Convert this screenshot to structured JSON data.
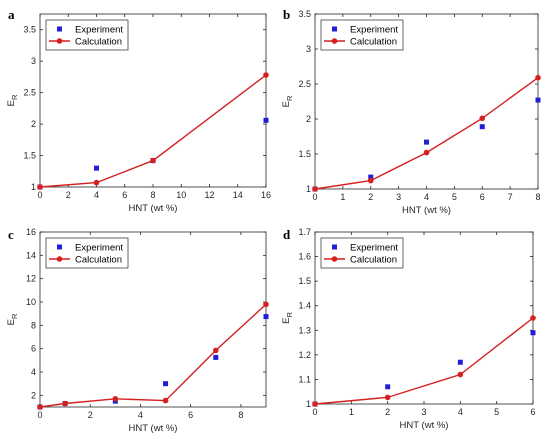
{
  "colors": {
    "experiment": "#1f1fd6",
    "calculation": "#d61f1f",
    "axis": "#262626"
  },
  "chart_data": [
    {
      "panel": "a",
      "type": "line+scatter",
      "xlabel": "HNT (wt %)",
      "ylabel": "E",
      "ylabel_sub": "R",
      "xlim": [
        0,
        16
      ],
      "ylim": [
        1,
        3.75
      ],
      "xticks": [
        0,
        2,
        4,
        6,
        8,
        10,
        12,
        14,
        16
      ],
      "yticks": [
        1,
        1.5,
        2,
        2.5,
        3,
        3.5
      ],
      "legend": "top-left",
      "series": [
        {
          "name": "Experiment",
          "kind": "scatter",
          "x": [
            0,
            4,
            8,
            16
          ],
          "y": [
            1,
            1.3,
            1.42,
            2.06
          ]
        },
        {
          "name": "Calculation",
          "kind": "line",
          "x": [
            0,
            4,
            8,
            16
          ],
          "y": [
            1,
            1.07,
            1.42,
            2.78
          ]
        }
      ]
    },
    {
      "panel": "b",
      "type": "line+scatter",
      "xlabel": "HNT (wt %)",
      "ylabel": "E",
      "ylabel_sub": "R",
      "xlim": [
        0,
        8
      ],
      "ylim": [
        1,
        3.5
      ],
      "xticks": [
        0,
        1,
        2,
        3,
        4,
        5,
        6,
        7,
        8
      ],
      "yticks": [
        1,
        1.5,
        2,
        2.5,
        3,
        3.5
      ],
      "legend": "top-left",
      "series": [
        {
          "name": "Experiment",
          "kind": "scatter",
          "x": [
            0,
            2,
            4,
            6,
            8
          ],
          "y": [
            1,
            1.17,
            1.67,
            1.89,
            2.27
          ]
        },
        {
          "name": "Calculation",
          "kind": "line",
          "x": [
            0,
            2,
            4,
            6,
            8
          ],
          "y": [
            1,
            1.12,
            1.52,
            2.01,
            2.59
          ]
        }
      ]
    },
    {
      "panel": "c",
      "type": "line+scatter",
      "xlabel": "HNT (wt %)",
      "ylabel": "E",
      "ylabel_sub": "R",
      "xlim": [
        0,
        9
      ],
      "ylim": [
        1,
        16
      ],
      "xticks": [
        0,
        2,
        4,
        6,
        8
      ],
      "yticks": [
        2,
        4,
        6,
        8,
        10,
        12,
        14,
        16
      ],
      "legend": "top-left",
      "series": [
        {
          "name": "Experiment",
          "kind": "scatter",
          "x": [
            0,
            1,
            3,
            5,
            7,
            9
          ],
          "y": [
            1,
            1.3,
            1.5,
            3.0,
            5.25,
            8.75
          ]
        },
        {
          "name": "Calculation",
          "kind": "line",
          "x": [
            0,
            1,
            3,
            5,
            7,
            9
          ],
          "y": [
            1,
            1.3,
            1.7,
            1.55,
            5.85,
            9.8
          ]
        }
      ]
    },
    {
      "panel": "d",
      "type": "line+scatter",
      "xlabel": "HNT (wt %)",
      "ylabel": "E",
      "ylabel_sub": "R",
      "xlim": [
        0,
        6
      ],
      "ylim": [
        1,
        1.7
      ],
      "xticks": [
        0,
        1,
        2,
        3,
        4,
        5,
        6
      ],
      "yticks": [
        1,
        1.1,
        1.2,
        1.3,
        1.4,
        1.5,
        1.6,
        1.7
      ],
      "legend": "top-left",
      "series": [
        {
          "name": "Experiment",
          "kind": "scatter",
          "x": [
            0,
            2,
            4,
            6
          ],
          "y": [
            1,
            1.07,
            1.17,
            1.29
          ]
        },
        {
          "name": "Calculation",
          "kind": "line",
          "x": [
            0,
            2,
            4,
            6
          ],
          "y": [
            1,
            1.027,
            1.12,
            1.35
          ]
        }
      ]
    }
  ]
}
